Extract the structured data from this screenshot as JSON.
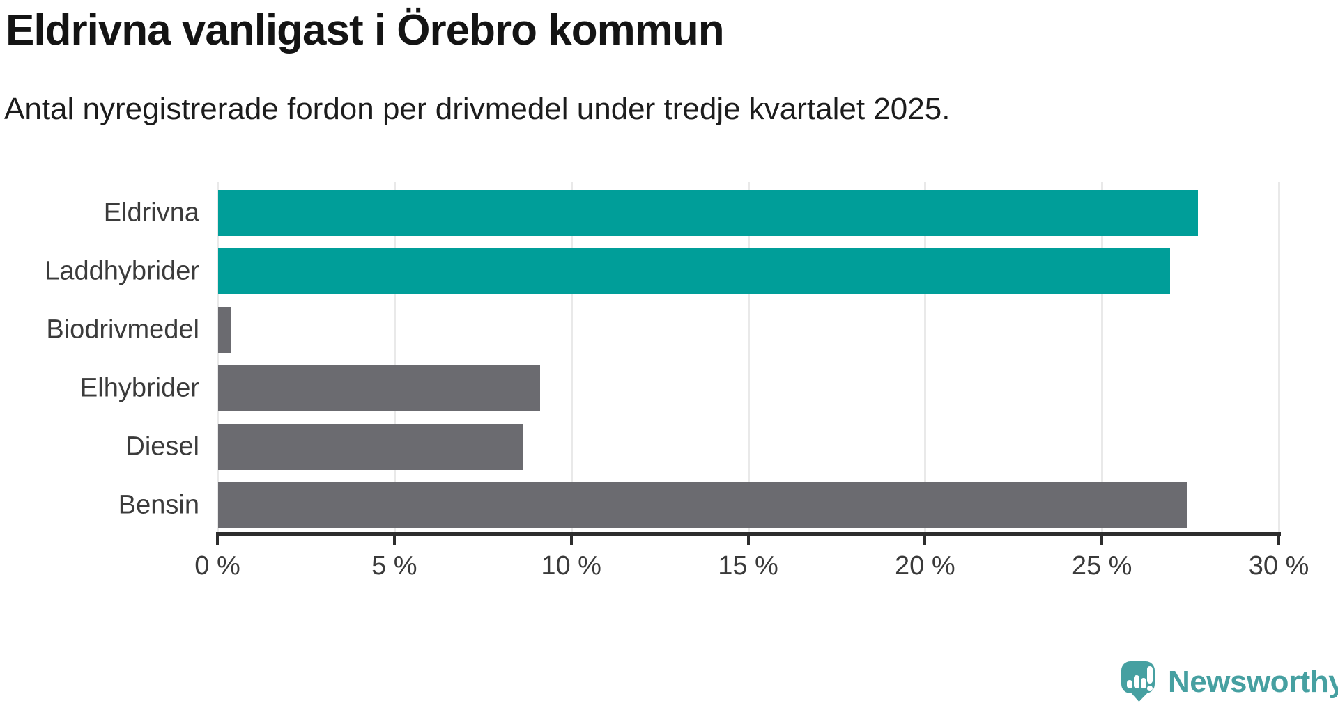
{
  "title": "Eldrivna vanligast i Örebro kommun",
  "subtitle": "Antal nyregistrerade fordon per drivmedel under tredje kvartalet 2025.",
  "chart_data": {
    "type": "bar",
    "orientation": "horizontal",
    "title": "Eldrivna vanligast i Örebro kommun",
    "subtitle": "Antal nyregistrerade fordon per drivmedel under tredje kvartalet 2025.",
    "categories": [
      "Eldrivna",
      "Laddhybrider",
      "Biodrivmedel",
      "Elhybrider",
      "Diesel",
      "Bensin"
    ],
    "values": [
      27.7,
      26.9,
      0.35,
      9.1,
      8.6,
      27.4
    ],
    "unit": "%",
    "xlim": [
      0,
      30
    ],
    "tick_values": [
      0,
      5,
      10,
      15,
      20,
      25,
      30
    ],
    "x_ticks": [
      "0 %",
      "5 %",
      "10 %",
      "15 %",
      "20 %",
      "25 %",
      "30 %"
    ],
    "grid": true,
    "legend": "none",
    "bar_colors": [
      "#009e99",
      "#009e99",
      "#6b6b70",
      "#6b6b70",
      "#6b6b70",
      "#6b6b70"
    ]
  },
  "colors": {
    "accent_teal": "#009e99",
    "bar_gray": "#6b6b70",
    "gridline": "#e9e9e9",
    "axis_line": "#2d2d2d",
    "title_text": "#141414",
    "label_text": "#3a3a3a",
    "logo_teal": "#46a0a1"
  },
  "branding": {
    "logo_text": "Newsworthy",
    "logo_icon": "newsworthy-bubble-chart-icon"
  }
}
